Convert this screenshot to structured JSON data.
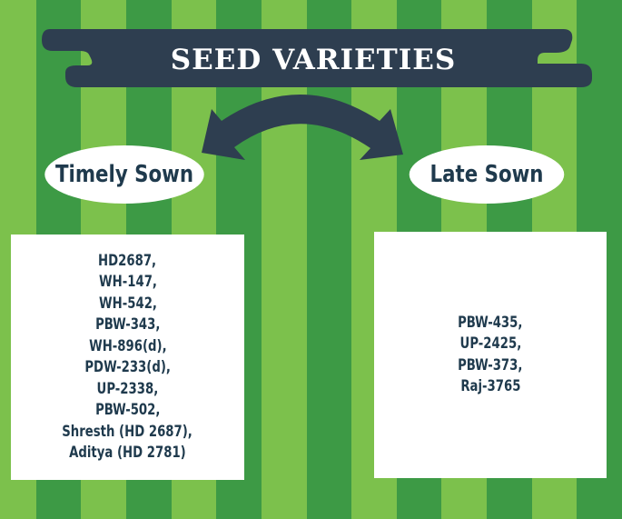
{
  "title": "SEED VARIETIES",
  "colors": {
    "light_green": "#7cc14c",
    "dark_green": "#3d9a45",
    "banner": "#2e3e50",
    "text_dark": "#1f3a4d",
    "white": "#ffffff"
  },
  "categories": [
    {
      "label": "Timely Sown",
      "varieties": [
        "HD2687,",
        "WH-147,",
        "WH-542,",
        "PBW-343,",
        "WH-896(d),",
        "PDW-233(d),",
        "UP-2338,",
        "PBW-502,",
        "Shresth (HD 2687),",
        "Aditya (HD 2781)"
      ]
    },
    {
      "label": "Late Sown",
      "varieties": [
        "PBW-435,",
        "UP-2425,",
        "PBW-373,",
        "Raj-3765"
      ]
    }
  ],
  "icons": {
    "banner": "ribbon-banner",
    "arrow": "double-headed-curved-arrow"
  }
}
